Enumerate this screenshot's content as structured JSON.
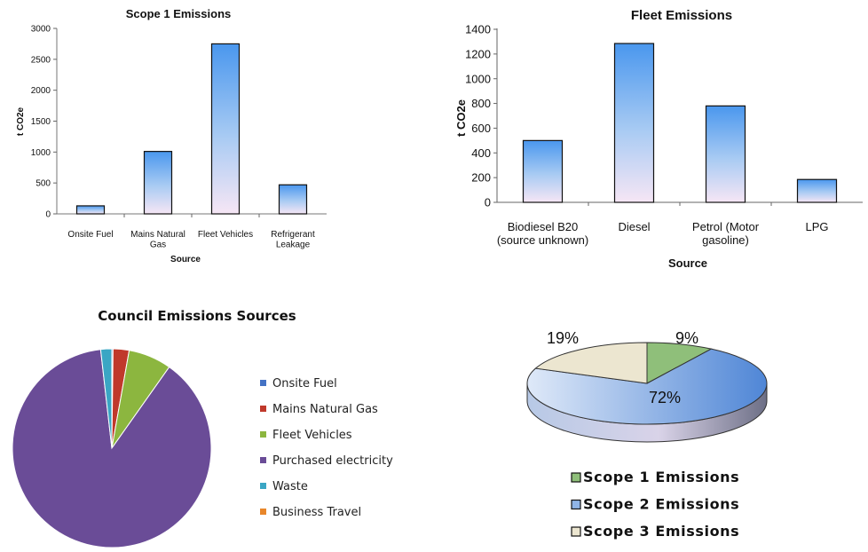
{
  "chart_data": [
    {
      "type": "bar",
      "title": "Scope 1 Emissions",
      "xlabel": "Source",
      "ylabel": "t CO2e",
      "ylim": [
        0,
        3000
      ],
      "yticks": [
        "0",
        "500",
        "1000",
        "1500",
        "2000",
        "2500",
        "3000"
      ],
      "categories": [
        [
          "Onsite Fuel"
        ],
        [
          "Mains Natural",
          "Gas"
        ],
        [
          "Fleet Vehicles"
        ],
        [
          "Refrigerant",
          "Leakage"
        ]
      ],
      "values": [
        130,
        1010,
        2750,
        470
      ],
      "grid": false
    },
    {
      "type": "bar",
      "title": "Fleet Emissions",
      "xlabel": "Source",
      "ylabel": "t CO2e",
      "ylim": [
        0,
        1400
      ],
      "yticks": [
        "0",
        "200",
        "400",
        "600",
        "800",
        "1000",
        "1200",
        "1400"
      ],
      "categories": [
        [
          "Biodiesel B20",
          "(source unknown)"
        ],
        [
          "Diesel"
        ],
        [
          "Petrol (Motor",
          "gasoline)"
        ],
        [
          "LPG"
        ]
      ],
      "values": [
        500,
        1285,
        780,
        185
      ],
      "grid": false
    },
    {
      "type": "pie",
      "title": "Council Emissions Sources",
      "legend_placement": "right",
      "labels": [
        "Onsite Fuel",
        "Mains Natural Gas",
        "Fleet Vehicles",
        "Purchased electricity",
        "Waste",
        "Business Travel"
      ],
      "values": [
        0.2,
        2.6,
        7.0,
        88.4,
        1.8,
        0.0
      ],
      "colors": [
        "#4472c4",
        "#c0392b",
        "#8cb63f",
        "#6a4c97",
        "#3aa6c4",
        "#e8862a"
      ]
    },
    {
      "type": "pie",
      "style": "3d",
      "title": "",
      "legend_placement": "bottom",
      "labels": [
        "Scope 1 Emissions",
        "Scope 2 Emissions",
        "Scope 3 Emissions"
      ],
      "values": [
        9,
        72,
        19
      ],
      "display_labels": [
        "9%",
        "72%",
        "19%"
      ],
      "colors": [
        "#8fbf7a",
        "#8fb4e6",
        "#ece6d0"
      ]
    }
  ]
}
